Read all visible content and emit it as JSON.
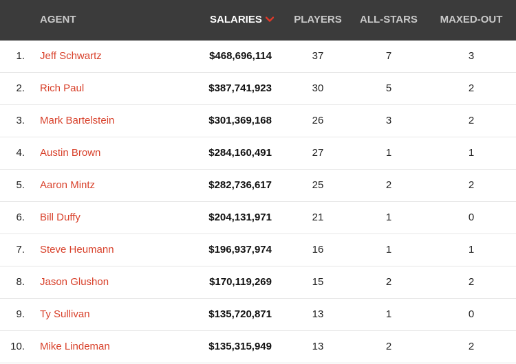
{
  "header": {
    "agent": "AGENT",
    "salaries": "SALARIES",
    "players": "PLAYERS",
    "all_stars": "ALL-STARS",
    "maxed_out": "MAXED-OUT",
    "sort_icon": "chevron-down-icon",
    "sort_color": "#e0392a"
  },
  "rows": [
    {
      "rank": "1.",
      "agent": "Jeff Schwartz",
      "salaries": "$468,696,114",
      "players": "37",
      "all_stars": "7",
      "maxed_out": "3"
    },
    {
      "rank": "2.",
      "agent": "Rich Paul",
      "salaries": "$387,741,923",
      "players": "30",
      "all_stars": "5",
      "maxed_out": "2"
    },
    {
      "rank": "3.",
      "agent": "Mark Bartelstein",
      "salaries": "$301,369,168",
      "players": "26",
      "all_stars": "3",
      "maxed_out": "2"
    },
    {
      "rank": "4.",
      "agent": "Austin Brown",
      "salaries": "$284,160,491",
      "players": "27",
      "all_stars": "1",
      "maxed_out": "1"
    },
    {
      "rank": "5.",
      "agent": "Aaron Mintz",
      "salaries": "$282,736,617",
      "players": "25",
      "all_stars": "2",
      "maxed_out": "2"
    },
    {
      "rank": "6.",
      "agent": "Bill Duffy",
      "salaries": "$204,131,971",
      "players": "21",
      "all_stars": "1",
      "maxed_out": "0"
    },
    {
      "rank": "7.",
      "agent": "Steve Heumann",
      "salaries": "$196,937,974",
      "players": "16",
      "all_stars": "1",
      "maxed_out": "1"
    },
    {
      "rank": "8.",
      "agent": "Jason Glushon",
      "salaries": "$170,119,269",
      "players": "15",
      "all_stars": "2",
      "maxed_out": "2"
    },
    {
      "rank": "9.",
      "agent": "Ty Sullivan",
      "salaries": "$135,720,871",
      "players": "13",
      "all_stars": "1",
      "maxed_out": "0"
    },
    {
      "rank": "10.",
      "agent": "Mike Lindeman",
      "salaries": "$135,315,949",
      "players": "13",
      "all_stars": "2",
      "maxed_out": "2"
    }
  ]
}
